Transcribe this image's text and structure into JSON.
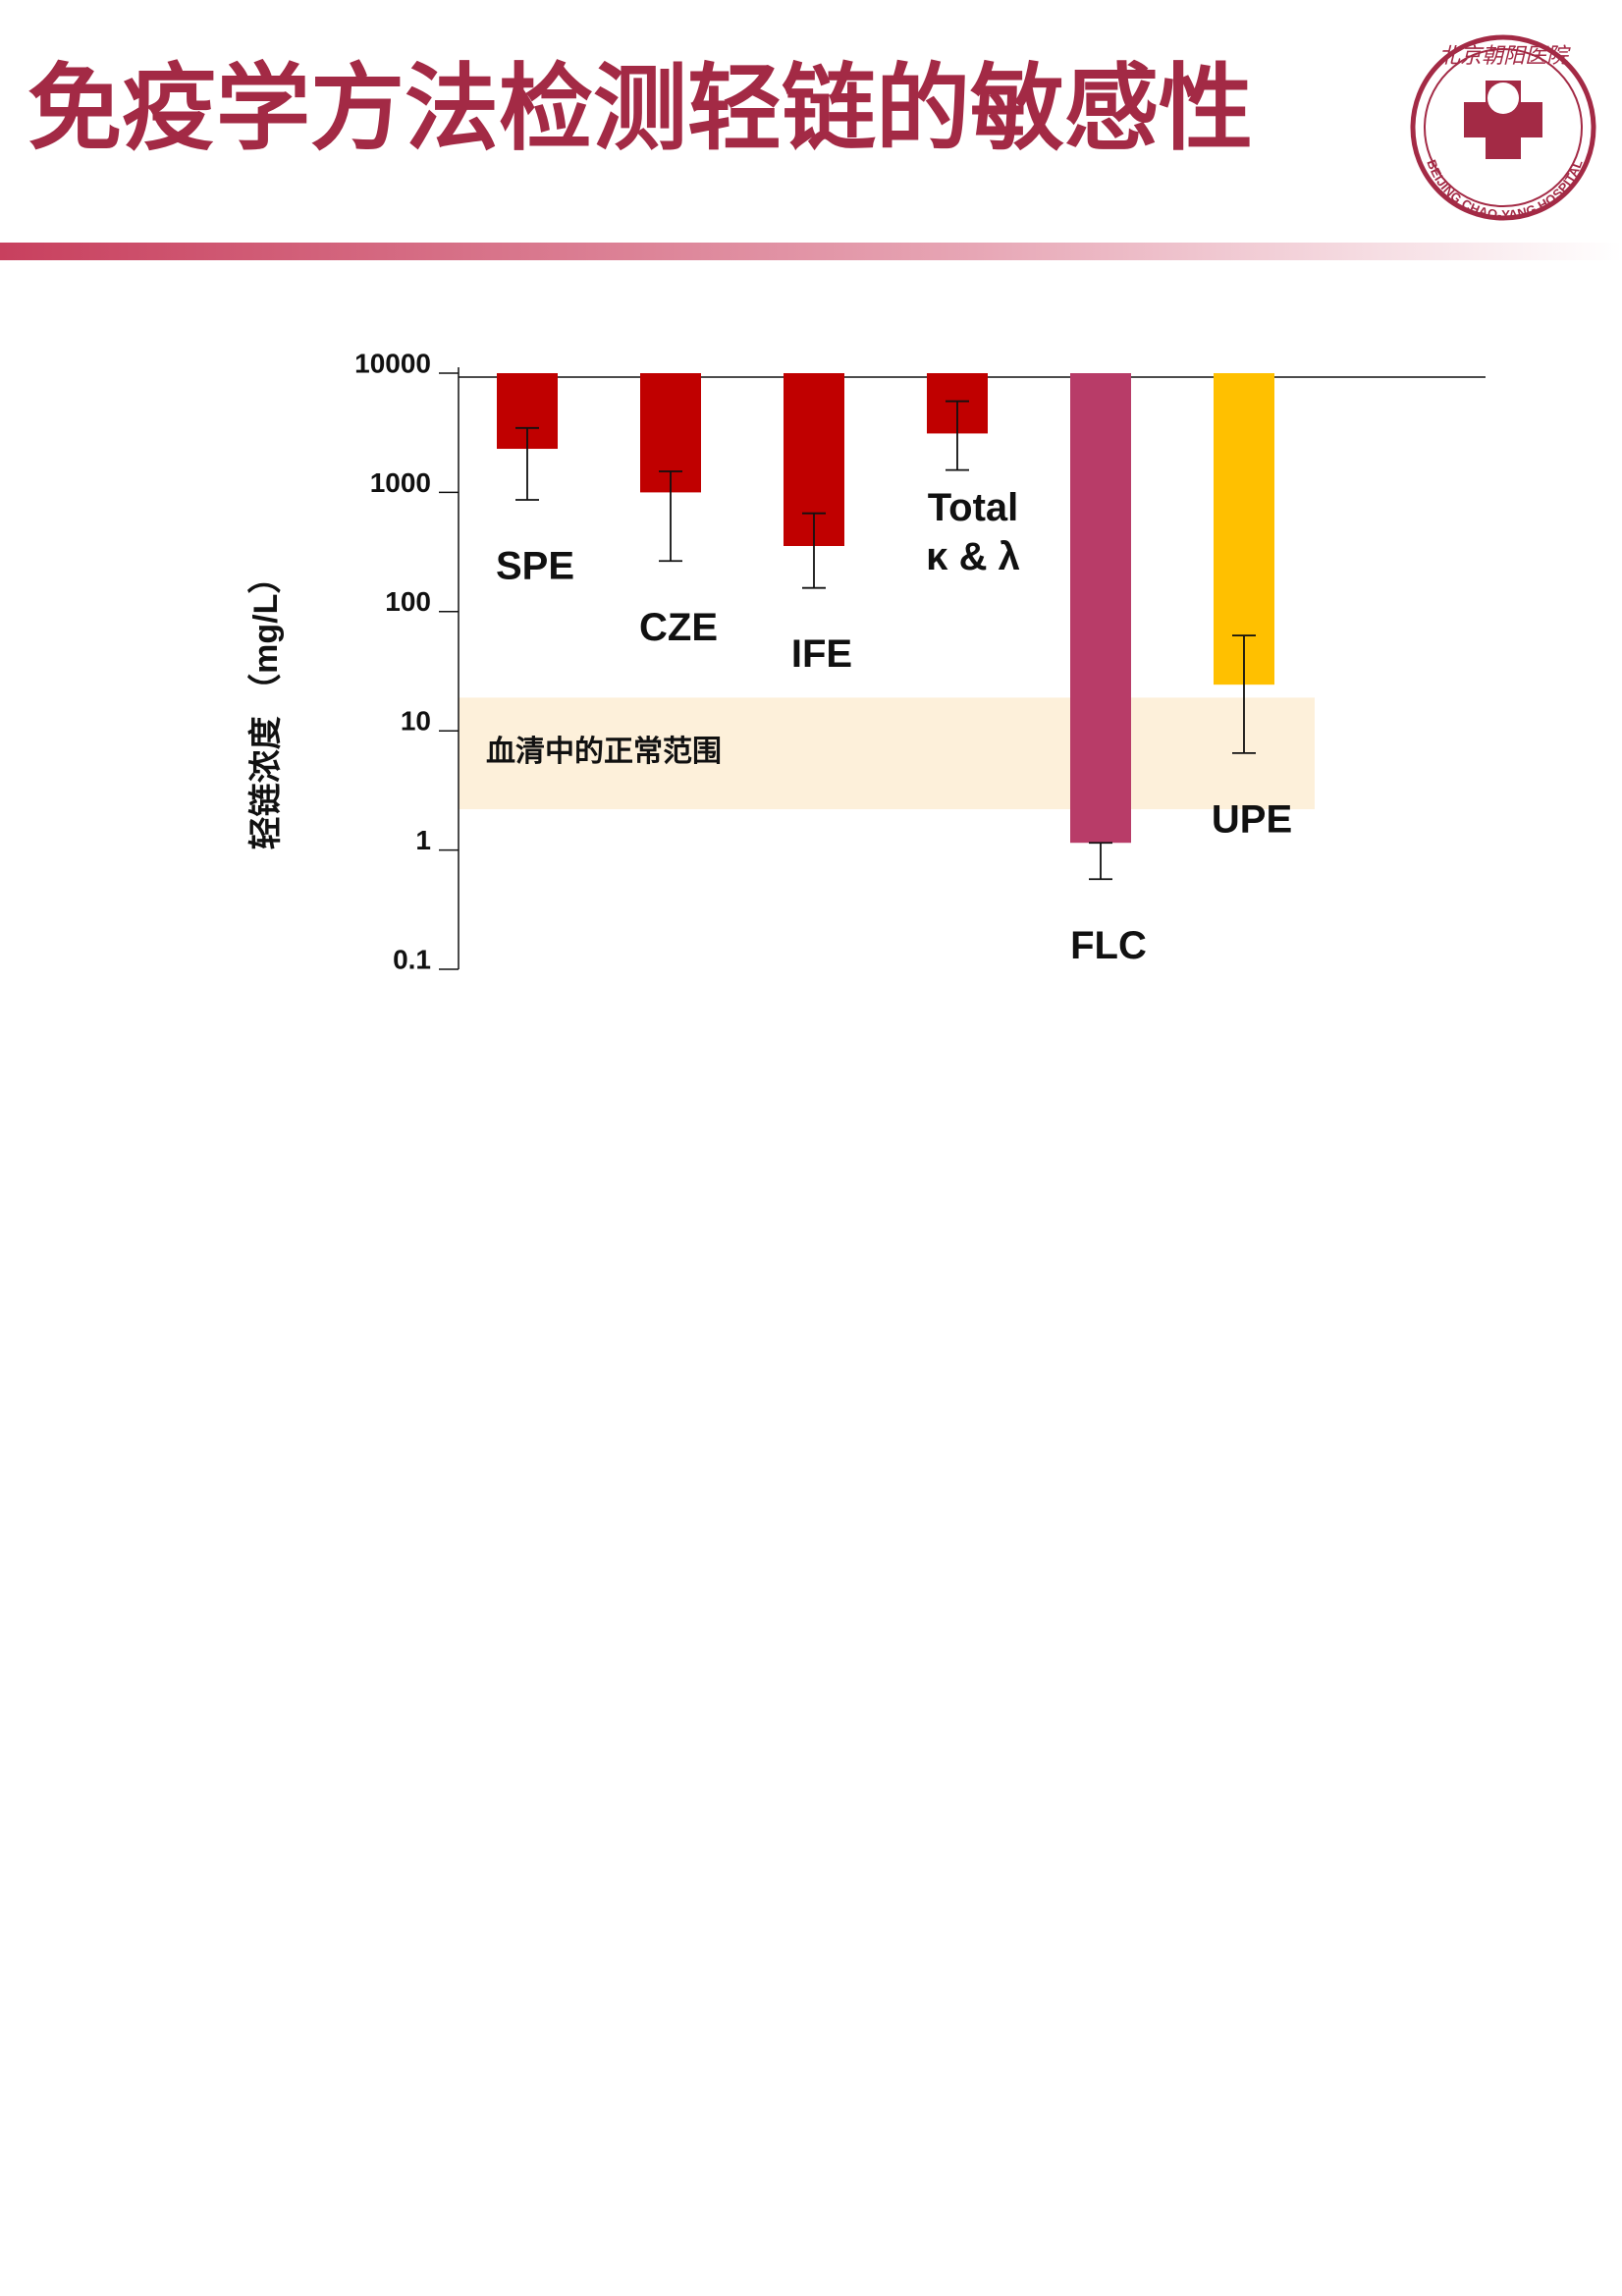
{
  "header": {
    "title": "免疫学方法检测轻链的敏感性",
    "logo": {
      "name": "北京朝阳医院",
      "text": "BEIJING CHAO-YANG HOSPITAL"
    }
  },
  "chart_data": {
    "type": "bar",
    "orientation": "hanging",
    "log_scale": true,
    "y_label": "轻链浓度 （mg/L）",
    "categories": [
      [
        "SPE"
      ],
      [
        "CZE"
      ],
      [
        "IFE"
      ],
      [
        "Total",
        "κ & λ"
      ],
      [
        "FLC"
      ],
      [
        "UPE"
      ]
    ],
    "values": [
      2320,
      1000,
      355,
      3120,
      1.15,
      24.4
    ],
    "error_low": [
      866,
      266,
      158,
      1540,
      0.57,
      6.5
    ],
    "error_high": [
      3470,
      1500,
      668,
      5820,
      1.15,
      63
    ],
    "colors": [
      "#c00000",
      "#c00000",
      "#c00000",
      "#c00000",
      "#b83c68",
      "#ffc000"
    ],
    "ylim": [
      0.1,
      10000
    ],
    "yticks": [
      10000,
      1000,
      100,
      10,
      1,
      0.1
    ],
    "normal_range": {
      "label": "血清中的正常范围",
      "range": [
        2.2,
        19
      ],
      "color": "#fdf0da"
    }
  }
}
